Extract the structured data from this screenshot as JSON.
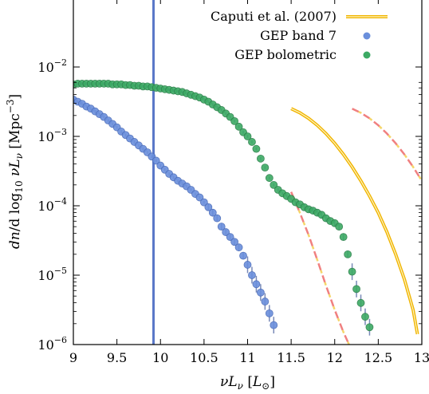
{
  "chart_data": {
    "type": "scatter",
    "xlabel": "νL_ν [L_⊙]",
    "ylabel": "dn/d log10 νL_ν [Mpc^−3]",
    "xlim": [
      9,
      13
    ],
    "ylim_log10": [
      -6,
      -2.2
    ],
    "y_scale": "log",
    "x_ticks": [
      "9",
      "9.5",
      "10",
      "10.5",
      "11",
      "11.5",
      "12",
      "12.5",
      "13"
    ],
    "y_ticks": [
      {
        "base": "10",
        "exp": "−2",
        "log10": -2
      },
      {
        "base": "10",
        "exp": "−3",
        "log10": -3
      },
      {
        "base": "10",
        "exp": "−4",
        "log10": -4
      },
      {
        "base": "10",
        "exp": "−5",
        "log10": -5
      },
      {
        "base": "10",
        "exp": "−6",
        "log10": -6
      }
    ],
    "vertical_line": {
      "x": 9.92,
      "color": "#5a78c8"
    },
    "legend": [
      {
        "label": "Caputi et al. (2007)",
        "kind": "line",
        "color": "#f0b400"
      },
      {
        "label": "GEP band 7",
        "kind": "dot",
        "color": "#6a8fdc"
      },
      {
        "label": "GEP bolometric",
        "kind": "dot",
        "color": "#3caa64"
      }
    ],
    "series": [
      {
        "name": "GEP band 7",
        "color": "#6a8fdc",
        "x": [
          9.0,
          9.05,
          9.1,
          9.15,
          9.2,
          9.25,
          9.3,
          9.35,
          9.4,
          9.45,
          9.5,
          9.55,
          9.6,
          9.65,
          9.7,
          9.75,
          9.8,
          9.85,
          9.9,
          9.95,
          10.0,
          10.05,
          10.1,
          10.15,
          10.2,
          10.25,
          10.3,
          10.35,
          10.4,
          10.45,
          10.5,
          10.55,
          10.6,
          10.65,
          10.7,
          10.75,
          10.8,
          10.85,
          10.9,
          10.95,
          11.0,
          11.05,
          11.1,
          11.15,
          11.2,
          11.25,
          11.3
        ],
        "y": [
          -2.47,
          -2.5,
          -2.53,
          -2.57,
          -2.6,
          -2.64,
          -2.68,
          -2.72,
          -2.77,
          -2.82,
          -2.87,
          -2.93,
          -2.98,
          -3.03,
          -3.08,
          -3.13,
          -3.18,
          -3.23,
          -3.29,
          -3.35,
          -3.42,
          -3.48,
          -3.54,
          -3.59,
          -3.64,
          -3.68,
          -3.72,
          -3.77,
          -3.83,
          -3.88,
          -3.95,
          -4.02,
          -4.1,
          -4.18,
          -4.3,
          -4.38,
          -4.45,
          -4.52,
          -4.6,
          -4.72,
          -4.85,
          -5.0,
          -5.13,
          -5.25,
          -5.38,
          -5.55,
          -5.72
        ]
      },
      {
        "name": "GEP bolometric",
        "color": "#3caa64",
        "x": [
          9.0,
          9.05,
          9.1,
          9.15,
          9.2,
          9.25,
          9.3,
          9.35,
          9.4,
          9.45,
          9.5,
          9.55,
          9.6,
          9.65,
          9.7,
          9.75,
          9.8,
          9.85,
          9.9,
          9.95,
          10.0,
          10.05,
          10.1,
          10.15,
          10.2,
          10.25,
          10.3,
          10.35,
          10.4,
          10.45,
          10.5,
          10.55,
          10.6,
          10.65,
          10.7,
          10.75,
          10.8,
          10.85,
          10.9,
          10.95,
          11.0,
          11.05,
          11.1,
          11.15,
          11.2,
          11.25,
          11.3,
          11.35,
          11.4,
          11.45,
          11.5,
          11.55,
          11.6,
          11.65,
          11.7,
          11.75,
          11.8,
          11.85,
          11.9,
          11.95,
          12.0,
          12.05,
          12.1,
          12.15,
          12.2,
          12.25,
          12.3,
          12.35,
          12.4
        ],
        "y": [
          -2.25,
          -2.24,
          -2.24,
          -2.24,
          -2.24,
          -2.24,
          -2.24,
          -2.24,
          -2.24,
          -2.25,
          -2.25,
          -2.25,
          -2.26,
          -2.26,
          -2.27,
          -2.27,
          -2.28,
          -2.28,
          -2.29,
          -2.3,
          -2.31,
          -2.32,
          -2.33,
          -2.34,
          -2.35,
          -2.36,
          -2.38,
          -2.4,
          -2.42,
          -2.44,
          -2.47,
          -2.5,
          -2.54,
          -2.58,
          -2.62,
          -2.67,
          -2.72,
          -2.78,
          -2.86,
          -2.94,
          -3.0,
          -3.08,
          -3.18,
          -3.32,
          -3.45,
          -3.6,
          -3.7,
          -3.77,
          -3.82,
          -3.86,
          -3.9,
          -3.95,
          -3.98,
          -4.02,
          -4.05,
          -4.07,
          -4.1,
          -4.13,
          -4.18,
          -4.22,
          -4.25,
          -4.3,
          -4.45,
          -4.7,
          -4.95,
          -5.2,
          -5.4,
          -5.6,
          -5.75
        ]
      },
      {
        "name": "Caputi et al. (2007)",
        "color": "#f0b400",
        "x": [
          11.5,
          11.6,
          11.7,
          11.8,
          11.9,
          12.0,
          12.1,
          12.2,
          12.3,
          12.4,
          12.5,
          12.6,
          12.7,
          12.8,
          12.9,
          12.95
        ],
        "y": [
          -2.6,
          -2.66,
          -2.74,
          -2.84,
          -2.96,
          -3.1,
          -3.26,
          -3.44,
          -3.64,
          -3.86,
          -4.1,
          -4.38,
          -4.7,
          -5.06,
          -5.5,
          -5.85
        ]
      },
      {
        "color": "#f08080",
        "dashed": true,
        "x": [
          11.5,
          11.6,
          11.7,
          11.8,
          11.9,
          12.0,
          12.1,
          12.2,
          12.25
        ],
        "y": [
          -3.8,
          -4.1,
          -4.42,
          -4.78,
          -5.15,
          -5.5,
          -5.82,
          -6.1,
          -6.25
        ]
      },
      {
        "color": "#f08080",
        "dashed": true,
        "x": [
          12.2,
          12.3,
          12.4,
          12.5,
          12.6,
          12.7,
          12.8,
          12.9,
          13.0
        ],
        "y": [
          -2.6,
          -2.66,
          -2.74,
          -2.84,
          -2.96,
          -3.1,
          -3.26,
          -3.44,
          -3.64
        ]
      }
    ]
  }
}
